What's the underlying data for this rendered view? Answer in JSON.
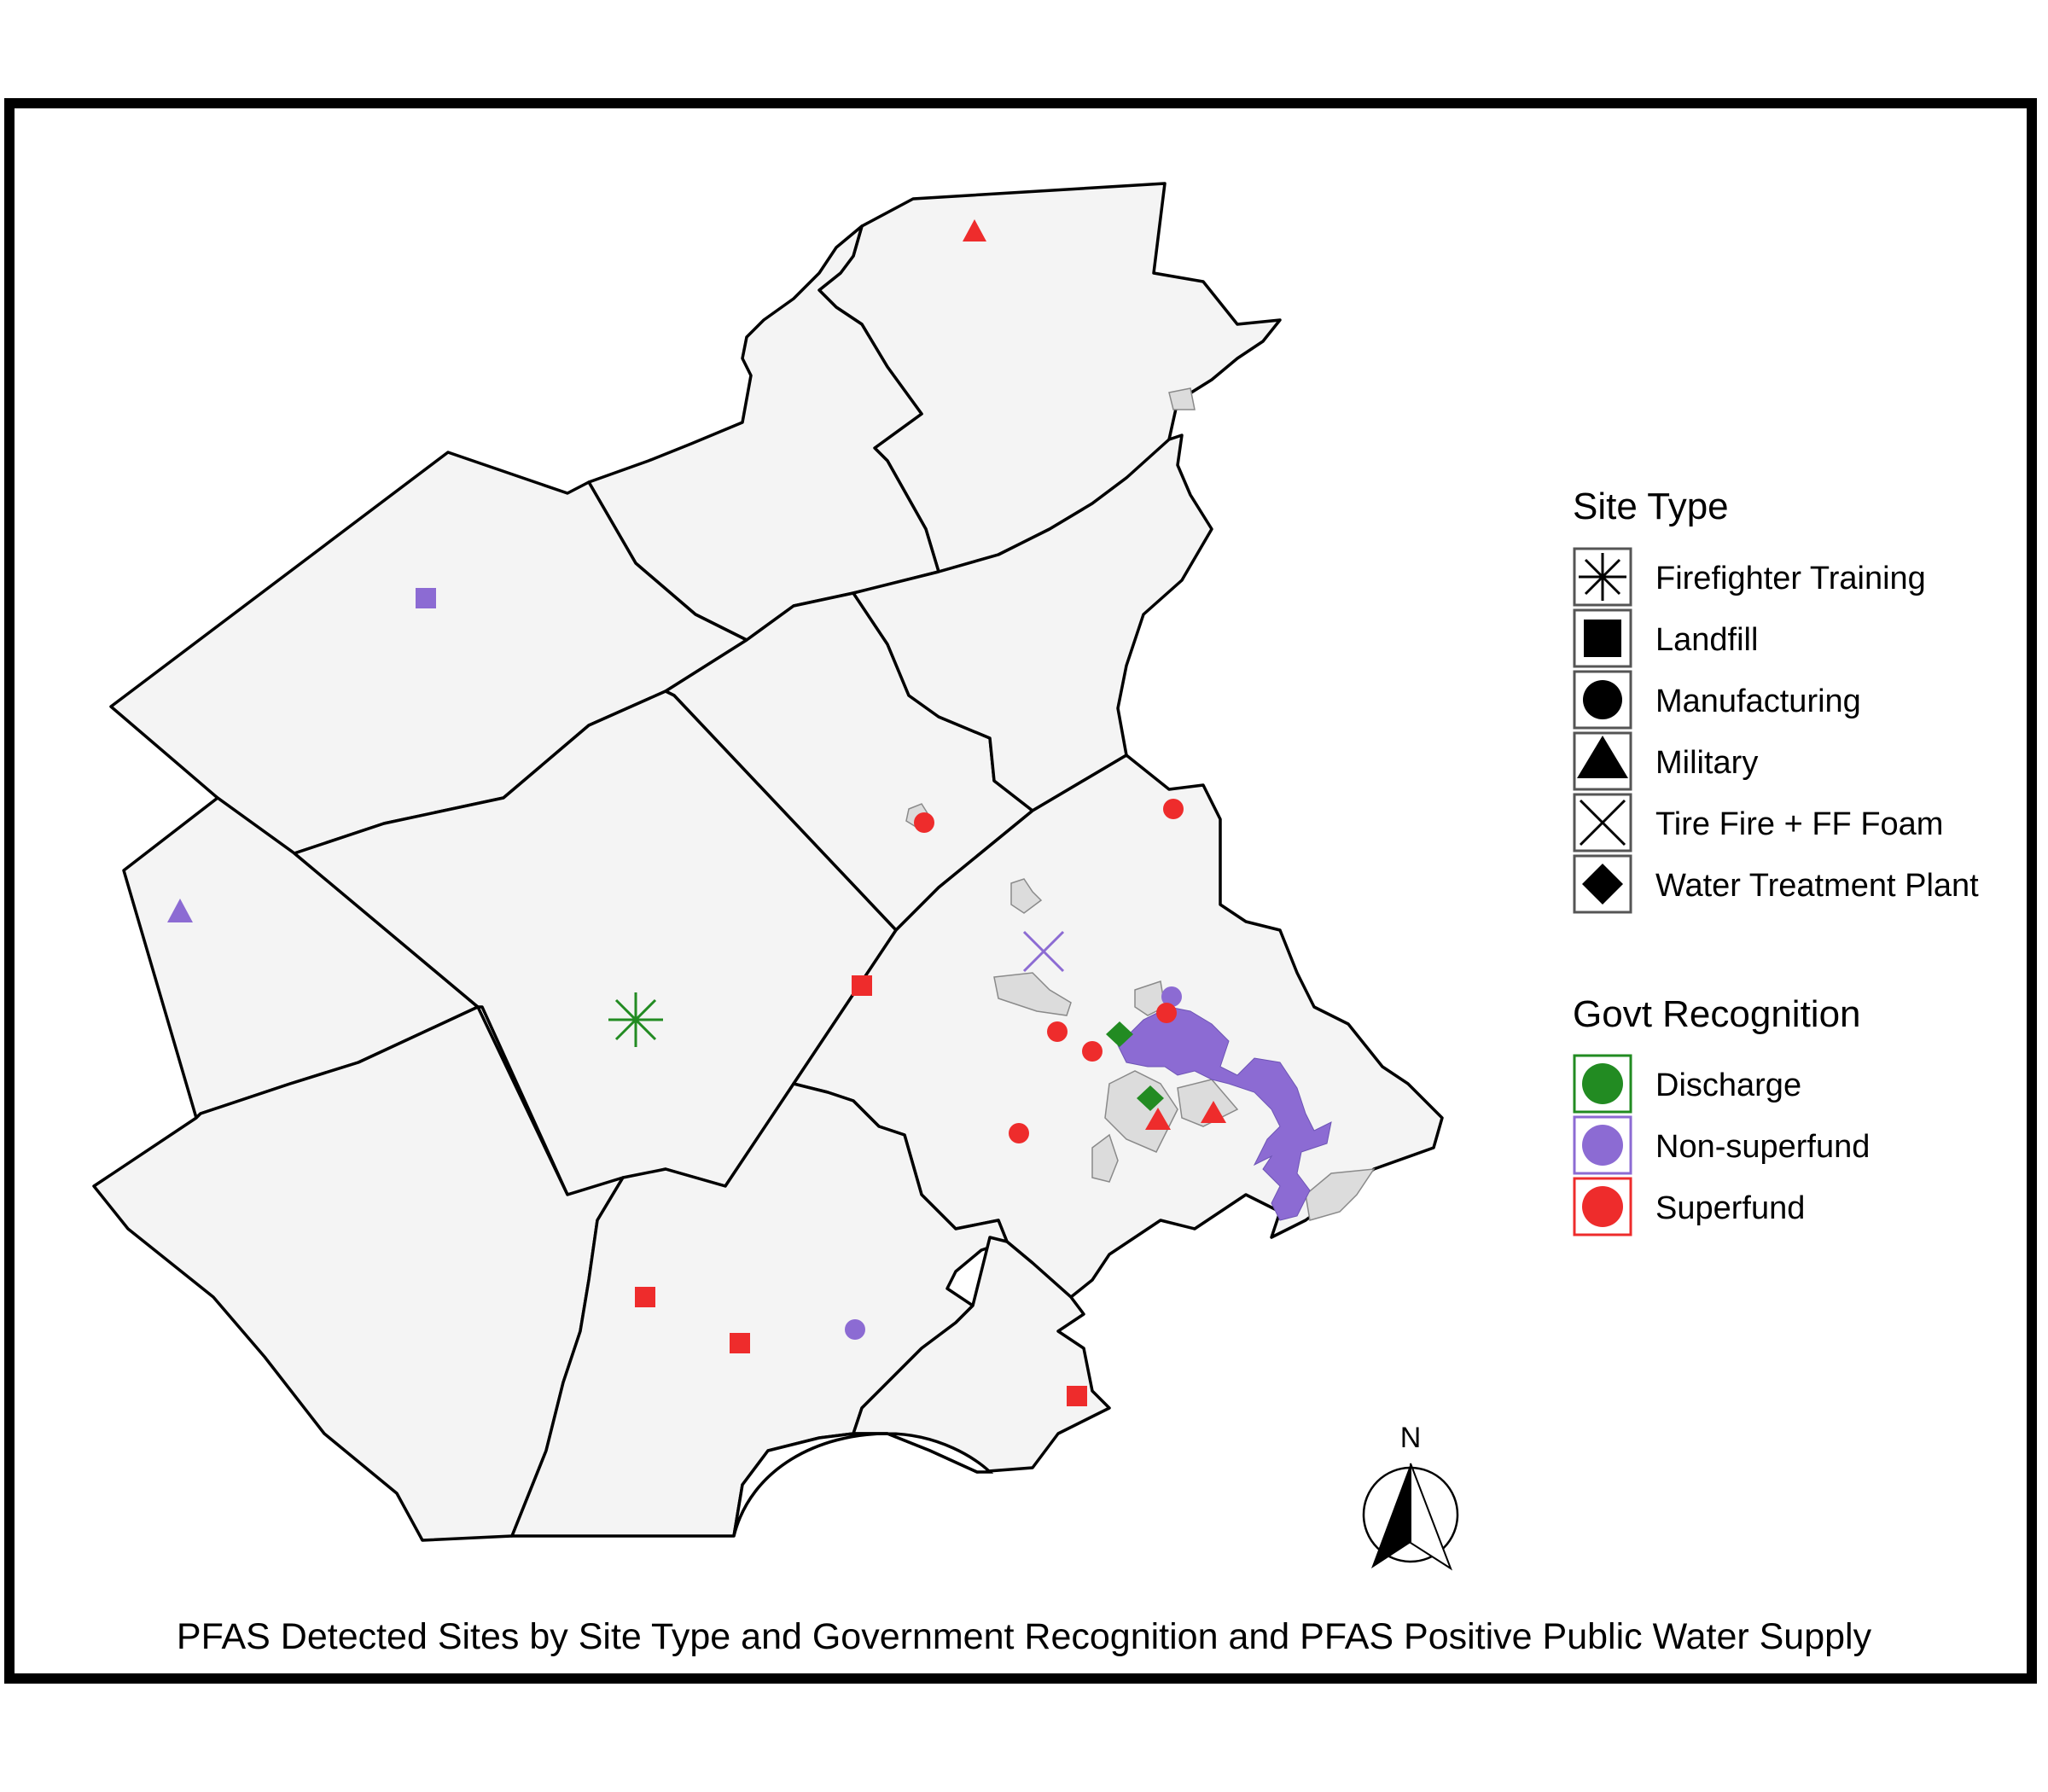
{
  "caption": "PFAS Detected Sites by Site Type and Government Recognition and PFAS Positive Public Water Supply",
  "north_label": "N",
  "legend": {
    "site_type": {
      "title": "Site Type",
      "items": [
        {
          "label": "Firefighter Training",
          "icon": "asterisk-icon"
        },
        {
          "label": "Landfill",
          "icon": "square-icon"
        },
        {
          "label": "Manufacturing",
          "icon": "circle-icon"
        },
        {
          "label": "Military",
          "icon": "triangle-icon"
        },
        {
          "label": "Tire Fire + FF Foam",
          "icon": "x-icon"
        },
        {
          "label": "Water Treatment Plant",
          "icon": "diamond-icon"
        }
      ]
    },
    "govt_recognition": {
      "title": "Govt Recognition",
      "items": [
        {
          "label": "Discharge",
          "color": "#228b22"
        },
        {
          "label": "Non-superfund",
          "color": "#8c6bd3"
        },
        {
          "label": "Superfund",
          "color": "#ee2c2c"
        }
      ]
    }
  },
  "colors": {
    "discharge": "#228b22",
    "non_superfund": "#8c6bd3",
    "superfund": "#ee2c2c",
    "county_fill": "#f4f4f4",
    "water_supply": "#8c6bd3"
  }
}
